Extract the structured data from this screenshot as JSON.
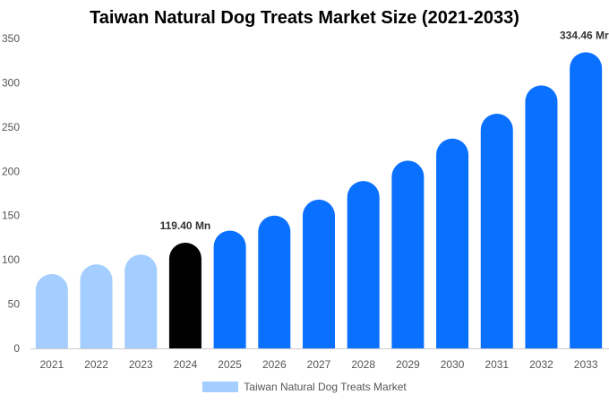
{
  "chart_data": {
    "type": "bar",
    "title": "Taiwan Natural Dog Treats Market Size (2021-2033)",
    "xlabel": "",
    "ylabel": "",
    "categories": [
      "2021",
      "2022",
      "2023",
      "2024",
      "2025",
      "2026",
      "2027",
      "2028",
      "2029",
      "2030",
      "2031",
      "2032",
      "2033"
    ],
    "series": [
      {
        "name": "Taiwan Natural Dog Treats Market",
        "values": [
          84,
          95,
          106,
          119.4,
          133,
          150,
          168,
          189,
          212,
          237,
          265,
          297,
          334.46
        ]
      }
    ],
    "ylim": [
      0,
      350
    ],
    "yticks": [
      0,
      50,
      100,
      150,
      200,
      250,
      300,
      350
    ],
    "data_labels": [
      {
        "category": "2024",
        "text": "119.40 Mn"
      },
      {
        "category": "2033",
        "text": "334.46 Mr"
      }
    ],
    "colors": {
      "historical": "#a3ceff",
      "base_year": "#000000",
      "forecast": "#0a70ff"
    },
    "grid": false,
    "legend_position": "bottom"
  }
}
